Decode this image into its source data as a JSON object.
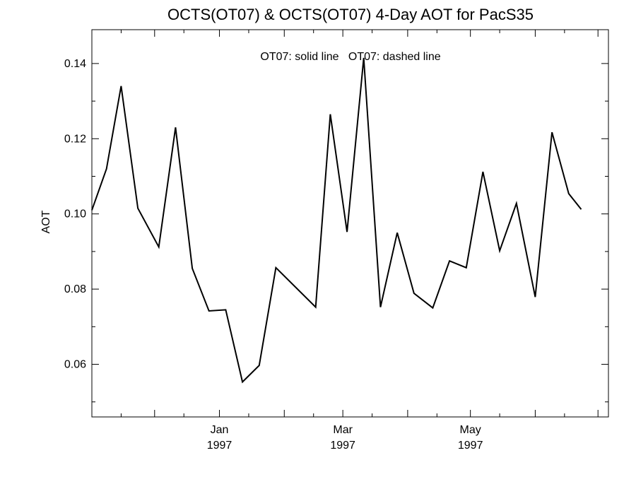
{
  "chart_data": {
    "type": "line",
    "title": "OCTS(OT07) & OCTS(OT07) 4-Day AOT for PacS35",
    "xlabel": "",
    "ylabel": "AOT",
    "annotation": "OT07: solid line   OT07: dashed line",
    "ylim": [
      0.046,
      0.149
    ],
    "yticks": [
      0.06,
      0.08,
      0.1,
      0.12,
      0.14
    ],
    "ytick_labels": [
      "0.06",
      "0.08",
      "0.10",
      "0.12",
      "0.14"
    ],
    "xlim": [
      "1996-11-01",
      "1997-07-06"
    ],
    "xticks": [
      {
        "date": "1997-01-01",
        "line1": "Jan",
        "line2": "1997"
      },
      {
        "date": "1997-03-01",
        "line1": "Mar",
        "line2": "1997"
      },
      {
        "date": "1997-05-01",
        "line1": "May",
        "line2": "1997"
      }
    ],
    "series": [
      {
        "style": "solid",
        "color": "#000000",
        "points": [
          [
            "1996-11-01",
            0.101
          ],
          [
            "1996-11-08",
            0.112
          ],
          [
            "1996-11-15",
            0.134
          ],
          [
            "1996-11-23",
            0.1015
          ],
          [
            "1996-12-03",
            0.0912
          ],
          [
            "1996-12-11",
            0.123
          ],
          [
            "1996-12-19",
            0.0855
          ],
          [
            "1996-12-27",
            0.0742
          ],
          [
            "1997-01-04",
            0.0745
          ],
          [
            "1997-01-12",
            0.0553
          ],
          [
            "1997-01-20",
            0.0597
          ],
          [
            "1997-01-28",
            0.0857
          ],
          [
            "1997-02-16",
            0.0752
          ],
          [
            "1997-02-23",
            0.1265
          ],
          [
            "1997-03-03",
            0.0952
          ],
          [
            "1997-03-11",
            0.1415
          ],
          [
            "1997-03-19",
            0.0752
          ],
          [
            "1997-03-27",
            0.095
          ],
          [
            "1997-04-04",
            0.0789
          ],
          [
            "1997-04-13",
            0.075
          ],
          [
            "1997-04-21",
            0.0875
          ],
          [
            "1997-04-29",
            0.0857
          ],
          [
            "1997-05-07",
            0.1112
          ],
          [
            "1997-05-15",
            0.0902
          ],
          [
            "1997-05-23",
            0.1028
          ],
          [
            "1997-06-01",
            0.0779
          ],
          [
            "1997-06-09",
            0.1217
          ],
          [
            "1997-06-17",
            0.1054
          ],
          [
            "1997-06-23",
            0.1012
          ]
        ]
      }
    ],
    "grid": false
  }
}
